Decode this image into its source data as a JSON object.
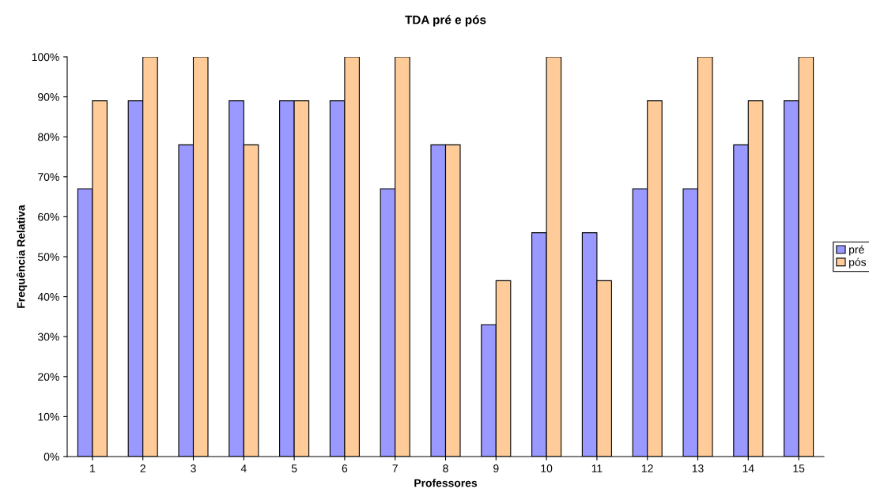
{
  "chart_data": {
    "type": "bar",
    "title": "TDA pré e pós",
    "xlabel": "Professores",
    "ylabel": "Frequência Relativa",
    "categories": [
      "1",
      "2",
      "3",
      "4",
      "5",
      "6",
      "7",
      "8",
      "9",
      "10",
      "11",
      "12",
      "13",
      "14",
      "15"
    ],
    "series": [
      {
        "name": "pré",
        "color": "#9999ff",
        "values": [
          67,
          89,
          78,
          89,
          89,
          89,
          67,
          78,
          33,
          56,
          56,
          67,
          67,
          78,
          89
        ]
      },
      {
        "name": "pós",
        "color": "#ffcc99",
        "values": [
          89,
          100,
          100,
          78,
          89,
          100,
          100,
          78,
          44,
          100,
          44,
          89,
          100,
          89,
          100
        ]
      }
    ],
    "ylim": [
      0,
      100
    ],
    "yticks": [
      {
        "value": 0,
        "label": "0%"
      },
      {
        "value": 10,
        "label": "10%"
      },
      {
        "value": 20,
        "label": "20%"
      },
      {
        "value": 30,
        "label": "30%"
      },
      {
        "value": 40,
        "label": "40%"
      },
      {
        "value": 50,
        "label": "50%"
      },
      {
        "value": 60,
        "label": "60%"
      },
      {
        "value": 70,
        "label": "70%"
      },
      {
        "value": 80,
        "label": "80%"
      },
      {
        "value": 90,
        "label": "90%"
      },
      {
        "value": 100,
        "label": "100%"
      }
    ],
    "grid": false,
    "legend": "right"
  }
}
